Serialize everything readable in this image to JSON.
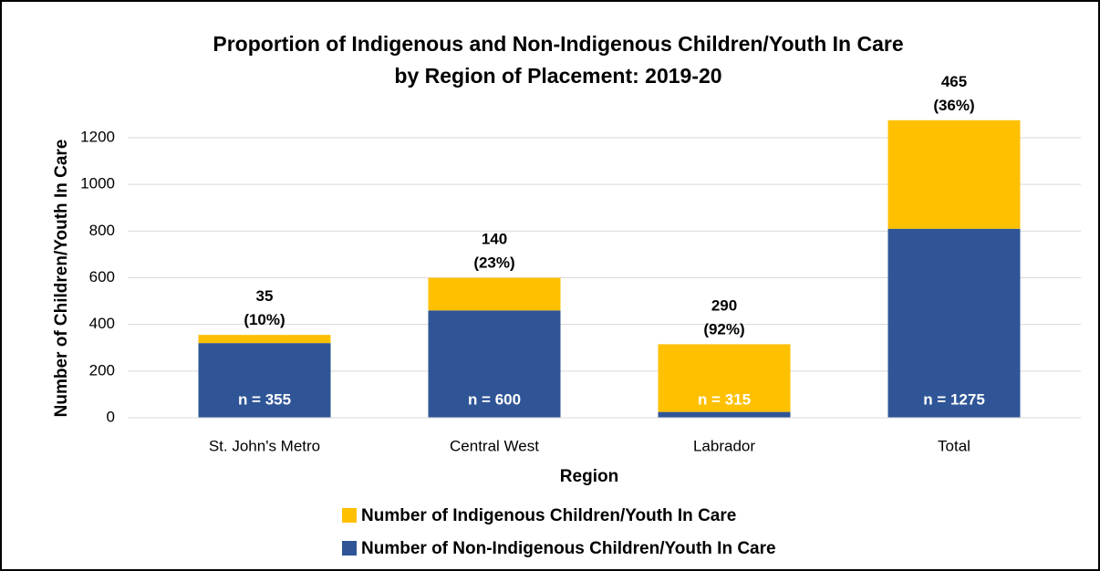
{
  "chart_data": {
    "type": "stacked_bar",
    "title": "Proportion of Indigenous and Non-Indigenous Children/Youth In Care\nby Region of Placement: 2019-20",
    "x_label": "Region",
    "y_label": "Number of Children/Youth In Care",
    "categories": [
      "St. John's Metro",
      "Central West",
      "Labrador",
      "Total"
    ],
    "series": [
      {
        "name": "Number of Non-Indigenous Children/Youth In Care",
        "color": "#2f5597",
        "values": [
          320,
          460,
          25,
          810
        ]
      },
      {
        "name": "Number of Indigenous Children/Youth In Care",
        "color": "#ffc000",
        "values": [
          35,
          140,
          290,
          465
        ],
        "value_labels": [
          "35\n(10%)",
          "140\n(23%)",
          "290\n(92%)",
          "465\n(36%)"
        ]
      }
    ],
    "total_labels": [
      "n = 355",
      "n = 600",
      "n = 315",
      "n = 1275"
    ],
    "ylim": [
      0,
      1200
    ],
    "yticks": [
      0,
      200,
      400,
      600,
      800,
      1000,
      1200
    ],
    "grid": true,
    "legend": "bottom"
  }
}
